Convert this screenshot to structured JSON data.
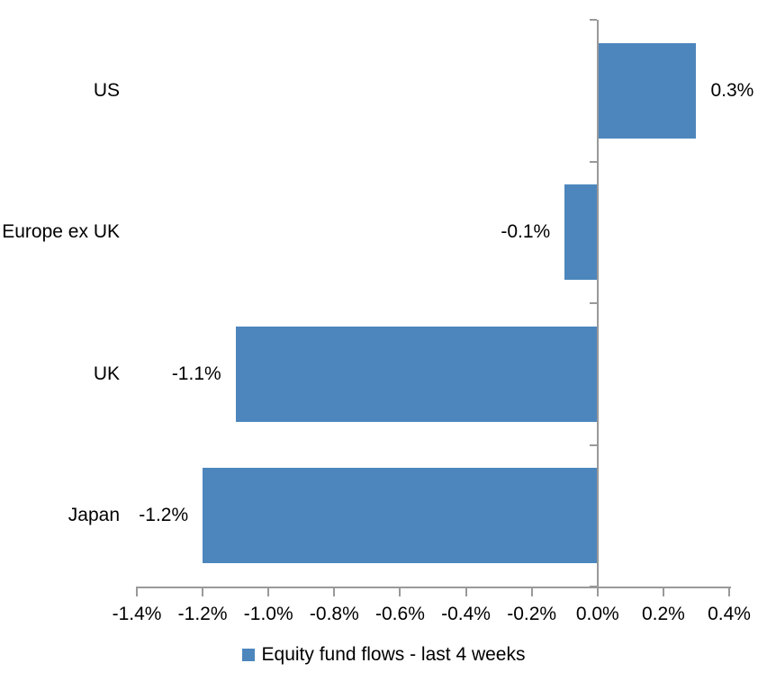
{
  "chart_data": {
    "type": "bar",
    "orientation": "horizontal",
    "title": "",
    "xlabel": "",
    "ylabel": "",
    "categories": [
      "US",
      "Europe ex UK",
      "UK",
      "Japan"
    ],
    "series": [
      {
        "name": "Equity fund flows - last 4 weeks",
        "values": [
          0.3,
          -0.1,
          -1.1,
          -1.2
        ],
        "value_labels": [
          "0.3%",
          "-0.1%",
          "-1.1%",
          "-1.2%"
        ]
      }
    ],
    "xlim": [
      -1.4,
      0.4
    ],
    "x_ticks": [
      -1.4,
      -1.2,
      -1.0,
      -0.8,
      -0.6,
      -0.4,
      -0.2,
      0.0,
      0.2,
      0.4
    ],
    "x_tick_labels": [
      "-1.4%",
      "-1.2%",
      "-1.0%",
      "-0.8%",
      "-0.6%",
      "-0.4%",
      "-0.2%",
      "0.0%",
      "0.2%",
      "0.4%"
    ],
    "grid": false,
    "legend_position": "bottom",
    "value_label_position": "outside-end",
    "category_label_position": "low-left",
    "bar_color": "#4D86BD",
    "axis_color": "#999999",
    "text_color": "#000000"
  }
}
